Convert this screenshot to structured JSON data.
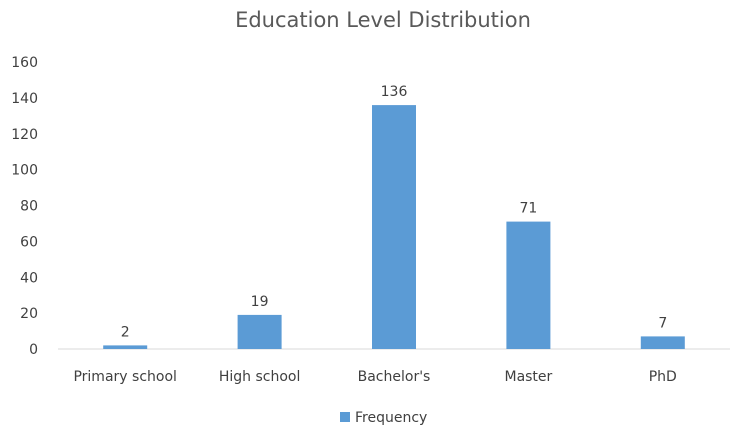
{
  "chart_data": {
    "type": "bar",
    "title": "Education Level Distribution",
    "xlabel": "",
    "ylabel": "",
    "categories": [
      "Primary school",
      "High school",
      "Bachelor's",
      "Master",
      "PhD"
    ],
    "series": [
      {
        "name": "Frequency",
        "values": [
          2,
          19,
          136,
          71,
          7
        ],
        "color": "#5B9BD5"
      }
    ],
    "ylim": [
      0,
      160
    ],
    "yticks": [
      0,
      20,
      40,
      60,
      80,
      100,
      120,
      140,
      160
    ],
    "data_labels": true,
    "grid": false,
    "legend": "bottom-center"
  }
}
